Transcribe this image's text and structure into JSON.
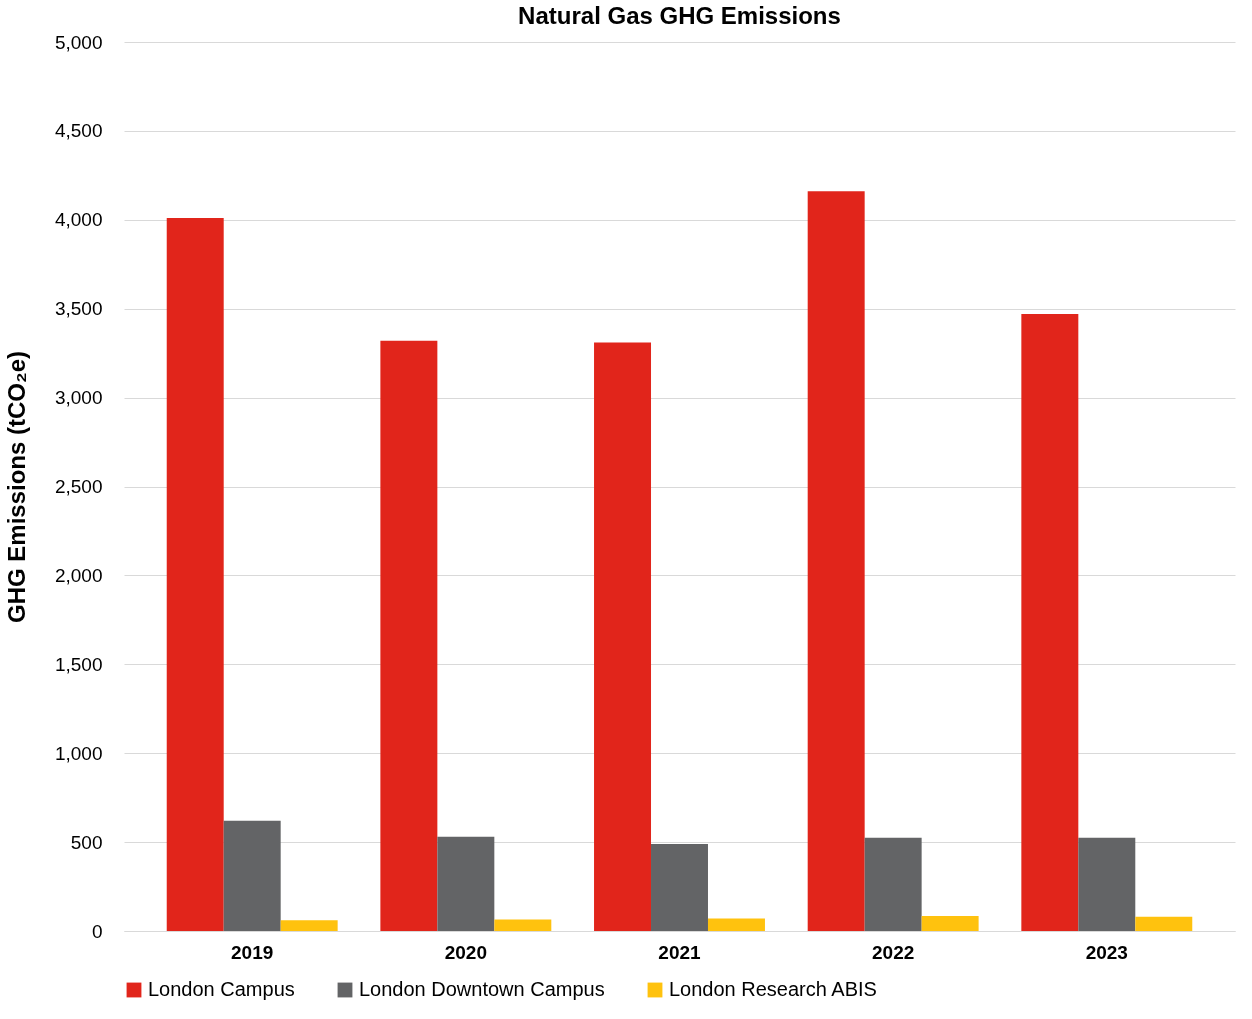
{
  "chart_data": {
    "type": "bar",
    "title": "Natural Gas GHG Emissions",
    "ylabel": "GHG Emissions (tCO₂e)",
    "categories": [
      "2019",
      "2020",
      "2021",
      "2022",
      "2023"
    ],
    "series": [
      {
        "name": "London Campus",
        "color": "#e1251b",
        "values": [
          4010,
          3320,
          3310,
          4160,
          3470
        ]
      },
      {
        "name": "London Downtown Campus",
        "color": "#636466",
        "values": [
          620,
          530,
          490,
          525,
          525
        ]
      },
      {
        "name": "London Research ABIS",
        "color": "#ffc20e",
        "values": [
          60,
          65,
          70,
          85,
          80
        ]
      }
    ],
    "ylim": [
      0,
      5000
    ],
    "yticks": [
      0,
      500,
      {
        "value": 1000,
        "label": "1,000"
      },
      {
        "value": 1500,
        "label": "1,500"
      },
      {
        "value": 2000,
        "label": "2,000"
      },
      {
        "value": 2500,
        "label": "2,500"
      },
      {
        "value": 3000,
        "label": "3,000"
      },
      {
        "value": 3500,
        "label": "3,500"
      },
      {
        "value": 4000,
        "label": "4,000"
      },
      {
        "value": 4500,
        "label": "4,500"
      },
      {
        "value": 5000,
        "label": "5,000"
      }
    ],
    "grid": "y",
    "legend": "bottom"
  }
}
